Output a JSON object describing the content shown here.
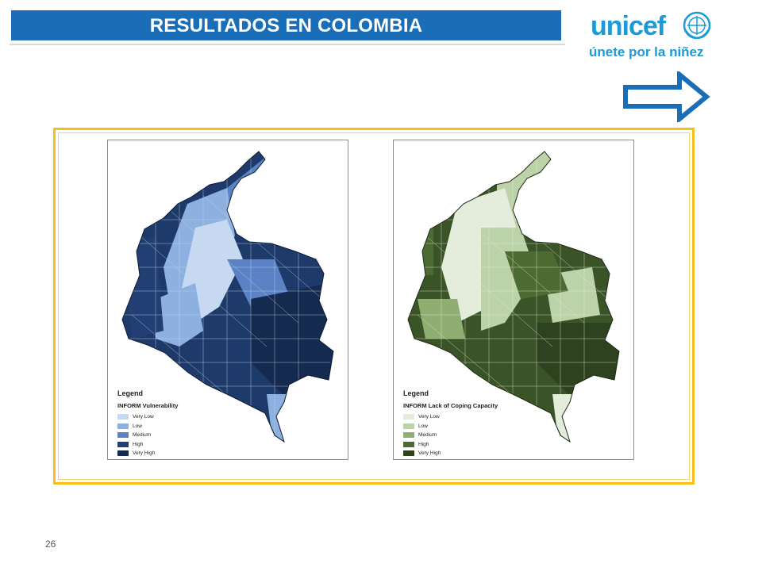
{
  "slide": {
    "title": "RESULTADOS EN COLOMBIA",
    "page_number": "26"
  },
  "logo": {
    "wordmark": "unicef",
    "tagline": "únete por la niñez",
    "emblem_icon": "unicef-emblem-icon",
    "color": "#1a9ad6"
  },
  "arrow": {
    "icon": "right-arrow-outline-icon",
    "color": "#1a6eb8"
  },
  "maps": [
    {
      "legend_title": "Legend",
      "legend_subtitle": "INFORM Vulnerability",
      "classes": [
        {
          "label": "Very Low",
          "color": "#c6d9f1"
        },
        {
          "label": "Low",
          "color": "#8db0e0"
        },
        {
          "label": "Medium",
          "color": "#5a82c4"
        },
        {
          "label": "High",
          "color": "#223f74"
        },
        {
          "label": "Very High",
          "color": "#142a4f"
        }
      ]
    },
    {
      "legend_title": "Legend",
      "legend_subtitle": "INFORM Lack of Coping Capacity",
      "classes": [
        {
          "label": "Very Low",
          "color": "#e4ecdc"
        },
        {
          "label": "Low",
          "color": "#bcd2a8"
        },
        {
          "label": "Medium",
          "color": "#8fae72"
        },
        {
          "label": "High",
          "color": "#4b6b32"
        },
        {
          "label": "Very High",
          "color": "#2e4220"
        }
      ]
    }
  ],
  "colors": {
    "title_bar": "#1a6eb8",
    "frame": "#f5bf1a"
  }
}
